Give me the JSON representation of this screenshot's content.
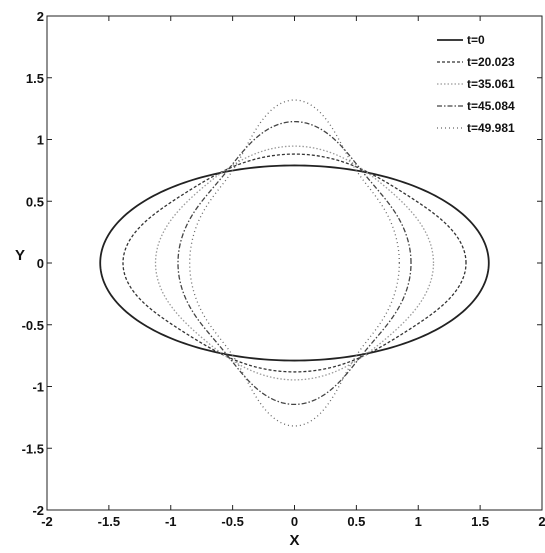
{
  "chart_data": {
    "type": "line",
    "title": "",
    "xlabel": "X",
    "ylabel": "Y",
    "xlim": [
      -2,
      2
    ],
    "ylim": [
      -2,
      2
    ],
    "xticks": [
      "-2",
      "-1.5",
      "-1",
      "-0.5",
      "0",
      "0.5",
      "1",
      "1.5",
      "2"
    ],
    "yticks": [
      "2",
      "1.5",
      "1",
      "0.5",
      "0",
      "-0.5",
      "-1",
      "-1.5",
      "-2"
    ],
    "grid": false,
    "legend_position": "top-right",
    "series": [
      {
        "name": "t=0",
        "shape": "closed curve",
        "x_semi_axis": 1.57,
        "y_semi_axis": 0.79,
        "bulge": 0.0,
        "color": "#222222",
        "dash": "",
        "width": 1.8
      },
      {
        "name": "t=20.023",
        "shape": "closed curve",
        "x_semi_axis": 1.32,
        "y_semi_axis": 0.84,
        "bulge": 0.05,
        "color": "#333333",
        "dash": "3,2",
        "width": 1.3
      },
      {
        "name": "t=35.061",
        "shape": "closed curve",
        "x_semi_axis": 1.08,
        "y_semi_axis": 0.91,
        "bulge": 0.04,
        "color": "#9a9a9a",
        "dash": "1.5,2",
        "width": 1.3
      },
      {
        "name": "t=45.084",
        "shape": "closed curve",
        "x_semi_axis": 0.88,
        "y_semi_axis": 1.07,
        "bulge": 0.07,
        "color": "#444444",
        "dash": "5,2,1.5,2",
        "width": 1.3
      },
      {
        "name": "t=49.981",
        "shape": "closed curve",
        "x_semi_axis": 0.77,
        "y_semi_axis": 1.2,
        "bulge": 0.1,
        "color": "#666666",
        "dash": "1,3",
        "width": 1.3
      }
    ]
  }
}
